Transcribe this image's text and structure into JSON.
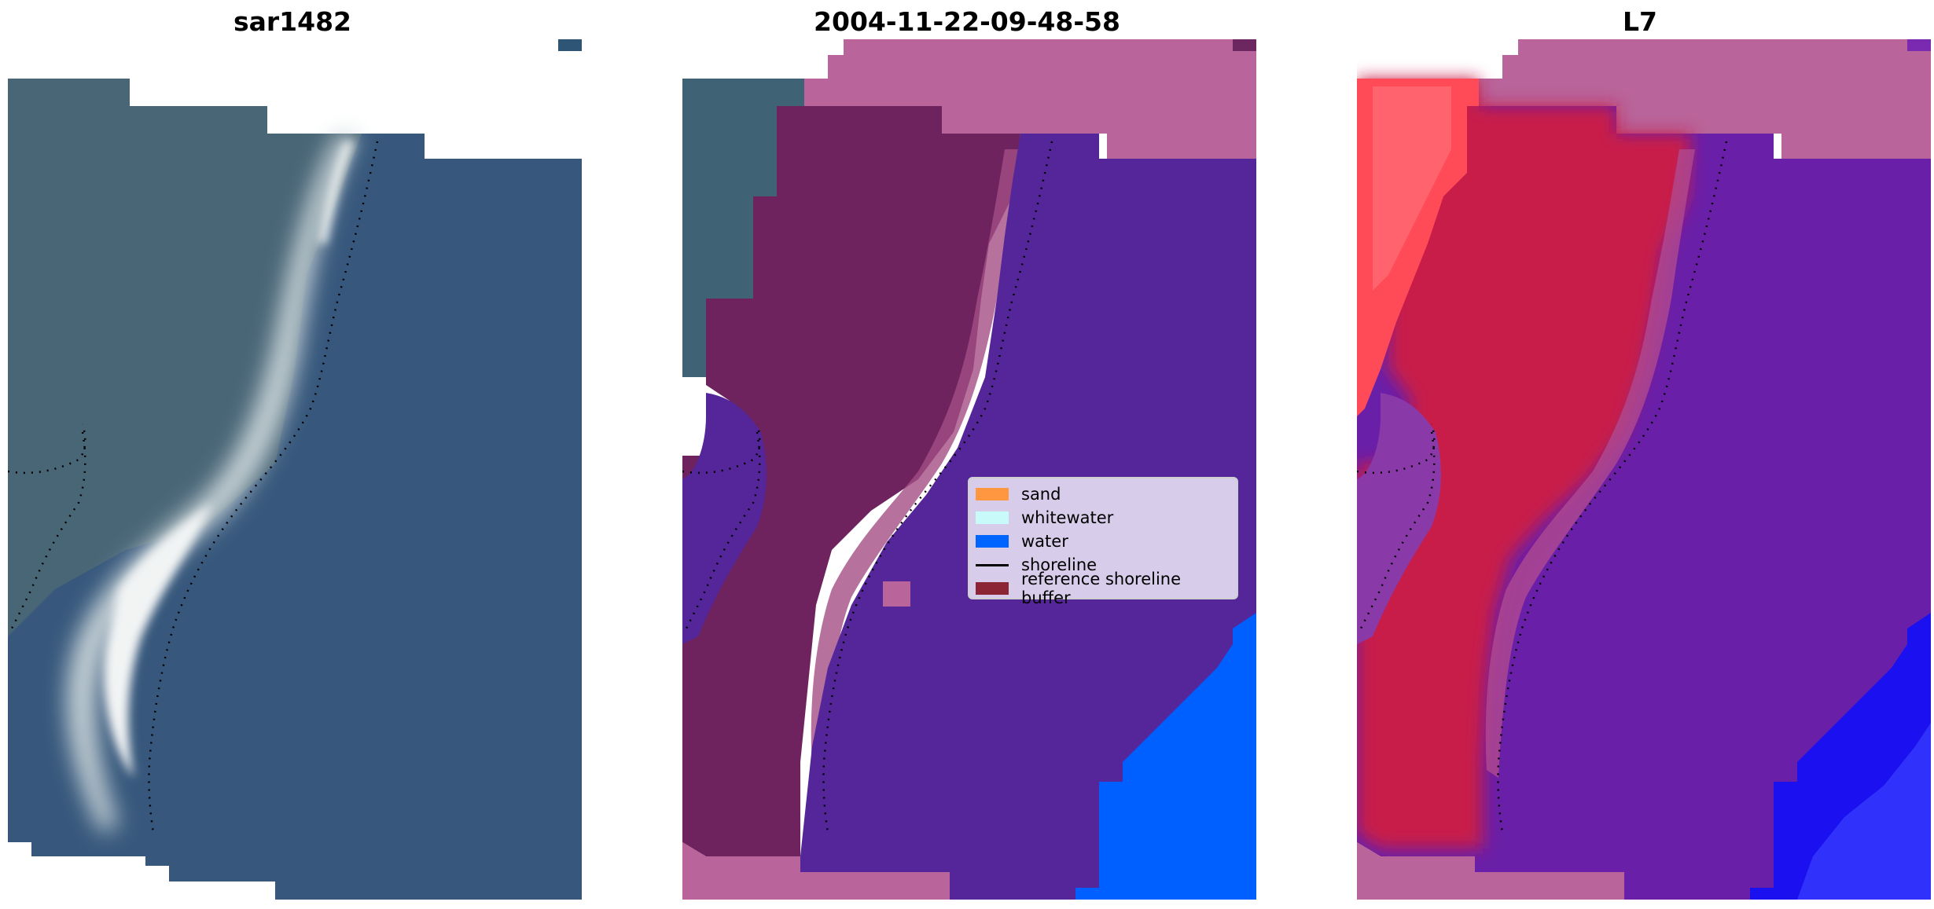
{
  "panels": [
    {
      "title": "sar1482"
    },
    {
      "title": "2004-11-22-09-48-58"
    },
    {
      "title": "L7"
    }
  ],
  "legend": {
    "items": [
      {
        "label": "sand",
        "color": "#ff9640",
        "kind": "patch"
      },
      {
        "label": "whitewater",
        "color": "#c8fafa",
        "kind": "patch"
      },
      {
        "label": "water",
        "color": "#0064ff",
        "kind": "patch"
      },
      {
        "label": "shoreline",
        "color": "#000000",
        "kind": "line"
      },
      {
        "label": "reference shoreline buffer",
        "color": "#8b2535",
        "kind": "patch"
      }
    ]
  },
  "colors": {
    "background": "#ffffff",
    "buffer_overlay": "#b8679a",
    "classified_water": "#55259a",
    "open_water": "#0060ff",
    "rgb_water": "#35577c",
    "false_color_land": "#c81e4a",
    "false_color_water": "#6a1fa8"
  }
}
